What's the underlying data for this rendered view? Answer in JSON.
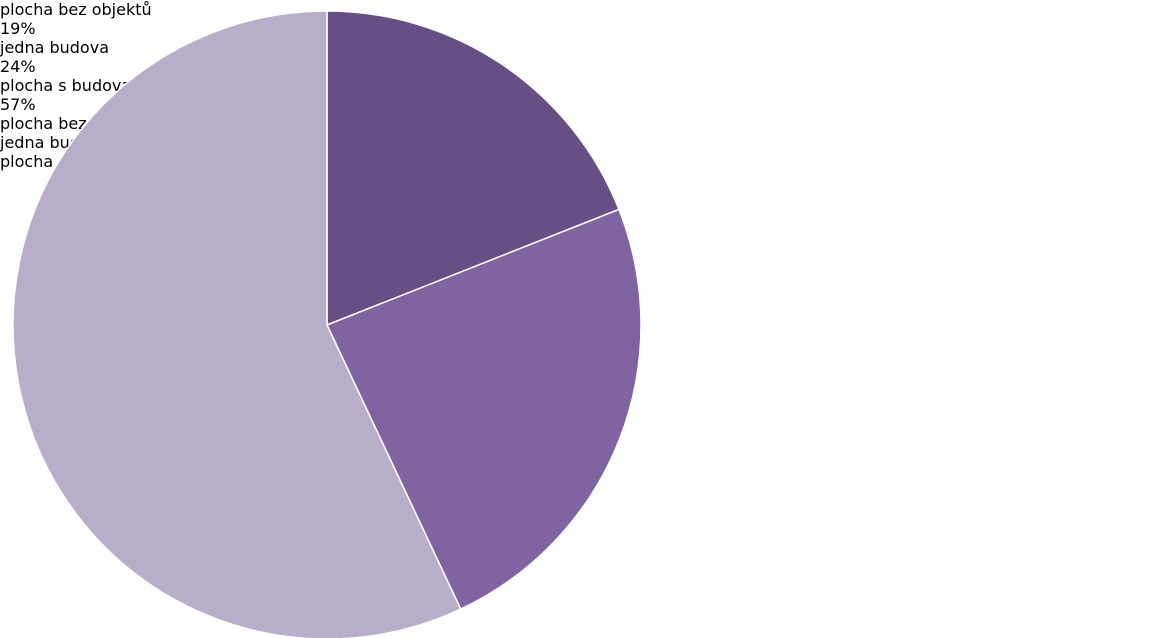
{
  "chart_data": {
    "type": "pie",
    "categories": [
      "plocha bez objektů",
      "jedna budova",
      "plocha s budovami"
    ],
    "values": [
      19,
      24,
      57
    ],
    "value_labels": [
      "19%",
      "24%",
      "57%"
    ],
    "colors": [
      "#674f86",
      "#8064a2",
      "#b9aeca"
    ],
    "legend": "right"
  }
}
